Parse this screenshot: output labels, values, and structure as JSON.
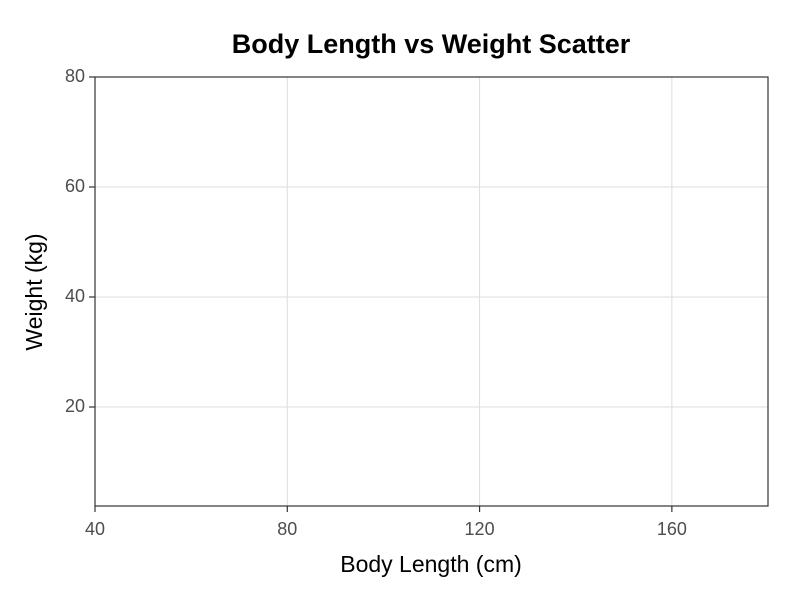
{
  "chart_data": {
    "type": "scatter",
    "title": "Body Length vs Weight Scatter",
    "x_label": "Body Length (cm)",
    "y_label": "Weight (kg)",
    "x": [],
    "y": [],
    "color": "#1f77b4",
    "xlim": [
      40,
      180
    ],
    "xticks": [
      40,
      80,
      120,
      160
    ],
    "ylim": [
      2,
      80
    ],
    "yticks": [
      20,
      40,
      60,
      80
    ],
    "grid": true
  }
}
